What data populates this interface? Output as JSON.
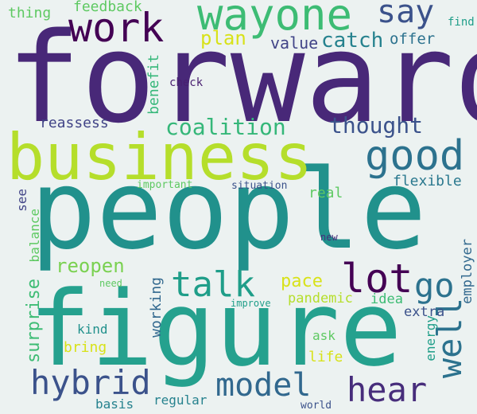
{
  "words": [
    {
      "text": "forward",
      "color": "#482878"
    },
    {
      "text": "people",
      "color": "#21918c"
    },
    {
      "text": "business",
      "color": "#b5de2b"
    },
    {
      "text": "figure",
      "color": "#25a18e"
    },
    {
      "text": "wayone",
      "color": "#3dbc74"
    },
    {
      "text": "work",
      "color": "#440154"
    },
    {
      "text": "good",
      "color": "#2c728e"
    },
    {
      "text": "say",
      "color": "#3b528b"
    },
    {
      "text": "talk",
      "color": "#1f9e89"
    },
    {
      "text": "lot",
      "color": "#440154"
    },
    {
      "text": "go",
      "color": "#2c728e"
    },
    {
      "text": "well",
      "color": "#2c728e"
    },
    {
      "text": "hear",
      "color": "#472d7b"
    },
    {
      "text": "model",
      "color": "#31688e"
    },
    {
      "text": "hybrid",
      "color": "#3b528b"
    },
    {
      "text": "coalition",
      "color": "#35b779"
    },
    {
      "text": "thought",
      "color": "#3b528b"
    },
    {
      "text": "catch",
      "color": "#26828e"
    },
    {
      "text": "plan",
      "color": "#d8e219"
    },
    {
      "text": "value",
      "color": "#414487"
    },
    {
      "text": "offer",
      "color": "#2c728e"
    },
    {
      "text": "feedback",
      "color": "#5ec962"
    },
    {
      "text": "thing",
      "color": "#5ec962"
    },
    {
      "text": "find",
      "color": "#1f9e89"
    },
    {
      "text": "reassess",
      "color": "#414487"
    },
    {
      "text": "benefit",
      "color": "#35b779"
    },
    {
      "text": "check",
      "color": "#481f70"
    },
    {
      "text": "flexible",
      "color": "#2a788e"
    },
    {
      "text": "real",
      "color": "#5ec962"
    },
    {
      "text": "reopen",
      "color": "#7ad151"
    },
    {
      "text": "pace",
      "color": "#d8e219"
    },
    {
      "text": "pandemic",
      "color": "#b5de2b"
    },
    {
      "text": "idea",
      "color": "#3dbc74"
    },
    {
      "text": "extra",
      "color": "#3b528b"
    },
    {
      "text": "employer",
      "color": "#31688e"
    },
    {
      "text": "surprise",
      "color": "#3dbc74"
    },
    {
      "text": "kind",
      "color": "#21918c"
    },
    {
      "text": "bring",
      "color": "#d8e219"
    },
    {
      "text": "working",
      "color": "#31688e"
    },
    {
      "text": "energy",
      "color": "#1f9e89"
    },
    {
      "text": "ask",
      "color": "#5ec962"
    },
    {
      "text": "life",
      "color": "#d8e219"
    },
    {
      "text": "balance",
      "color": "#5ec962"
    },
    {
      "text": "see",
      "color": "#414487"
    },
    {
      "text": "important",
      "color": "#5ec962"
    },
    {
      "text": "situation",
      "color": "#3b528b"
    },
    {
      "text": "new",
      "color": "#472d7b"
    },
    {
      "text": "need",
      "color": "#5ec962"
    },
    {
      "text": "improve",
      "color": "#1f9e89"
    },
    {
      "text": "regular",
      "color": "#26828e"
    },
    {
      "text": "basis",
      "color": "#26828e"
    },
    {
      "text": "world",
      "color": "#3b528b"
    }
  ]
}
